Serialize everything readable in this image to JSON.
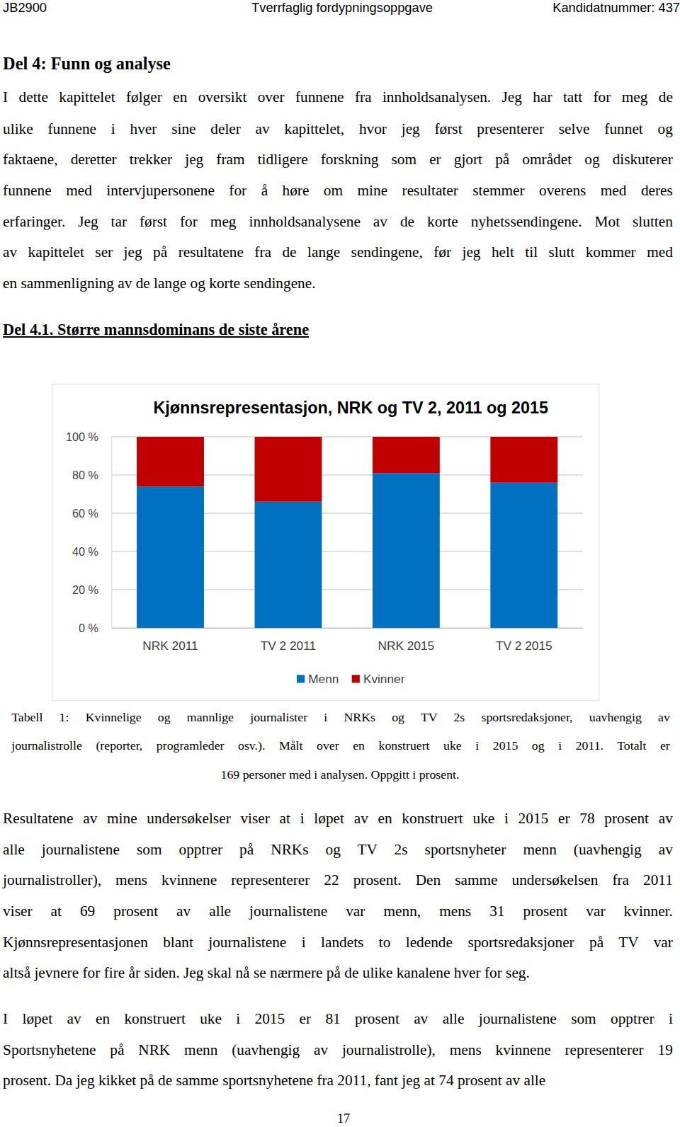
{
  "header": {
    "left": "JB2900",
    "center": "Tverrfaglig fordypningsoppgave",
    "right": "Kandidatnummer: 437"
  },
  "heading": "Del 4: Funn og analyse",
  "intro": [
    "I dette kapittelet følger en oversikt over funnene fra innholdsanalysen. Jeg har tatt for meg de",
    "ulike funnene i hver sine deler av kapittelet, hvor jeg først presenterer selve funnet og",
    "faktaene, deretter trekker jeg fram tidligere forskning som er gjort på området og diskuterer",
    "funnene med intervjupersonene for å høre om mine resultater stemmer overens med deres",
    "erfaringer. Jeg tar først for meg innholdsanalysene av de korte nyhetssendingene. Mot slutten",
    "av kapittelet ser jeg på resultatene fra de lange sendingene, før jeg helt til slutt kommer med",
    "en sammenligning av de lange og korte sendingene."
  ],
  "subheading": "Del 4.1. Større mannsdominans de siste årene",
  "chart_data": {
    "type": "bar",
    "stacked": true,
    "title": "Kjønnsrepresentasjon, NRK og TV 2, 2011 og 2015",
    "categories": [
      "NRK 2011",
      "TV 2 2011",
      "NRK 2015",
      "TV 2 2015"
    ],
    "series": [
      {
        "name": "Menn",
        "color": "#0070c0",
        "values": [
          74,
          66,
          81,
          76
        ]
      },
      {
        "name": "Kvinner",
        "color": "#c00000",
        "values": [
          26,
          34,
          19,
          24
        ]
      }
    ],
    "ylim": [
      0,
      100
    ],
    "yticks": [
      {
        "value": 0,
        "label": "0 %"
      },
      {
        "value": 20,
        "label": "20 %"
      },
      {
        "value": 40,
        "label": "40 %"
      },
      {
        "value": 60,
        "label": "60 %"
      },
      {
        "value": 80,
        "label": "80 %"
      },
      {
        "value": 100,
        "label": "100 %"
      }
    ],
    "grid": true,
    "legend": "bottom"
  },
  "caption": [
    "Tabell 1: Kvinnelige og mannlige journalister i NRKs og TV 2s sportsredaksjoner, uavhengig av",
    "journalistrolle (reporter, programleder osv.). Målt over en konstruert uke i 2015 og i 2011. Totalt er",
    "169 personer med i analysen. Oppgitt i prosent."
  ],
  "body": [
    [
      "Resultatene av mine undersøkelser viser at i løpet av en konstruert uke i 2015 er 78 prosent av",
      "alle journalistene som opptrer på NRKs og TV 2s sportsnyheter menn (uavhengig av",
      "journalistroller), mens kvinnene representerer 22 prosent. Den samme undersøkelsen fra 2011",
      "viser at 69 prosent av alle journalistene var menn, mens 31 prosent var kvinner.",
      "Kjønnsrepresentasjonen blant journalistene i landets to ledende sportsredaksjoner på TV var",
      "altså jevnere for fire år siden. Jeg skal nå se nærmere på de ulike kanalene hver for seg."
    ],
    [
      "I løpet av en konstruert uke i 2015 er 81 prosent av alle journalistene som opptrer i",
      "Sportsnyhetene på NRK menn (uavhengig av journalistrolle), mens kvinnene representerer 19",
      "prosent. Da jeg kikket på de samme sportsnyhetene fra 2011, fant jeg at 74 prosent av alle"
    ]
  ],
  "page_number": "17"
}
